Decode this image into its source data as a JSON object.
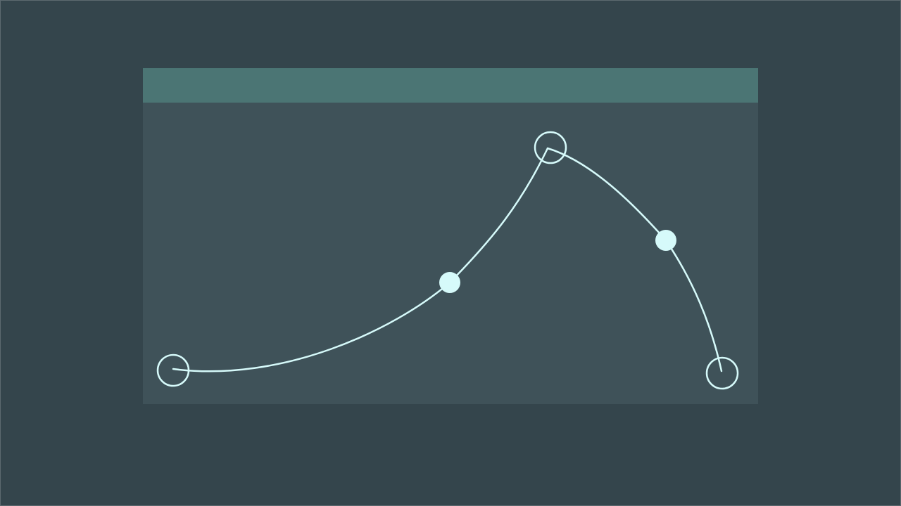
{
  "canvas": {
    "background": "#34454c",
    "panel_color": "#3f5259",
    "header_color": "#4b7574",
    "stroke_color": "#d6fafa"
  },
  "curve": {
    "segments": 2,
    "anchor_points": 3,
    "control_points": 2
  }
}
